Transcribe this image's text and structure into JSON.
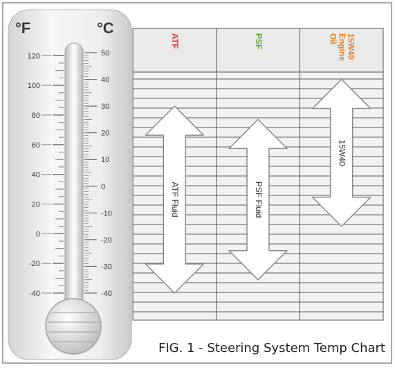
{
  "chart_data": {
    "type": "range",
    "title": "FIG. 1 - Steering System Temp Chart",
    "fahrenheit_label": "°F",
    "celsius_label": "°C",
    "fahrenheit_ticks": [
      "120",
      "100",
      "80",
      "60",
      "40",
      "20",
      "0",
      "-20",
      "-40"
    ],
    "celsius_ticks": [
      "50",
      "40",
      "30",
      "20",
      "10",
      "0",
      "-10",
      "-20",
      "-30",
      "-40"
    ],
    "celsius_range": [
      -45,
      50
    ],
    "columns": [
      {
        "header": "ATF",
        "color": "#e23a2e",
        "arrow_label": "ATF Fluid",
        "range_celsius": [
          -40,
          30
        ]
      },
      {
        "header": "PSF",
        "color": "#5aa83c",
        "arrow_label": "PSF Fluid",
        "range_celsius": [
          -35,
          25
        ]
      },
      {
        "header": "15W40 Engine Oil",
        "color": "#f07f1c",
        "arrow_label": "15W40",
        "range_celsius": [
          -15,
          40
        ]
      }
    ]
  }
}
